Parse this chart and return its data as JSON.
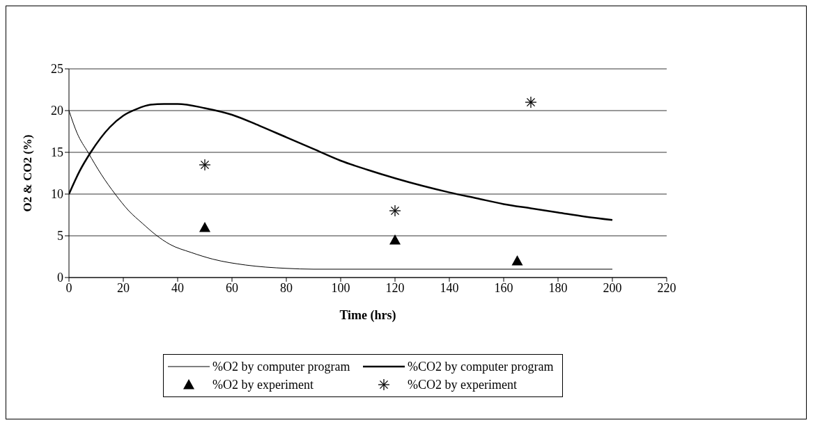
{
  "chart_data": {
    "type": "line",
    "xlabel": "Time (hrs)",
    "ylabel": "O2 & CO2 (%)",
    "xlim": [
      0,
      220
    ],
    "xticks": [
      0,
      20,
      40,
      60,
      80,
      100,
      120,
      140,
      160,
      180,
      200,
      220
    ],
    "ylim": [
      0,
      25
    ],
    "yticks": [
      0,
      5,
      10,
      15,
      20,
      25
    ],
    "grid": "y",
    "legend": "bottom",
    "series": [
      {
        "name": "%O2 by computer program",
        "color": "#000000",
        "marker": "none",
        "x": [
          0,
          3,
          7,
          12,
          17,
          22,
          27,
          32,
          37,
          45,
          53,
          65,
          80,
          90,
          120,
          160,
          200
        ],
        "values": [
          20,
          17.3,
          15,
          12.3,
          10,
          8,
          6.5,
          5.1,
          4,
          3,
          2.2,
          1.5,
          1.1,
          1,
          1,
          1,
          1
        ]
      },
      {
        "name": "%CO2 by computer program",
        "color": "#000000",
        "marker": "none",
        "x": [
          0,
          4,
          8,
          15,
          20,
          25,
          30,
          35,
          40,
          50,
          60,
          70,
          80,
          90,
          100,
          110,
          120,
          130,
          140,
          150,
          160,
          170,
          180,
          190,
          200
        ],
        "values": [
          10,
          12.8,
          15,
          18,
          19.4,
          20.2,
          20.7,
          20.8,
          20.8,
          20.3,
          19.5,
          18.2,
          16.8,
          15.4,
          14,
          12.9,
          11.9,
          11,
          10.2,
          9.5,
          8.8,
          8.3,
          7.8,
          7.3,
          6.9
        ]
      },
      {
        "name": "%O2 by experiment",
        "type": "scatter",
        "color": "#000000",
        "marker": "triangle",
        "x": [
          50,
          120,
          165
        ],
        "values": [
          6,
          4.5,
          2
        ]
      },
      {
        "name": "%CO2 by experiment",
        "type": "scatter",
        "color": "#000000",
        "marker": "cross",
        "x": [
          50,
          120,
          170
        ],
        "values": [
          13.5,
          8,
          21
        ]
      }
    ]
  }
}
